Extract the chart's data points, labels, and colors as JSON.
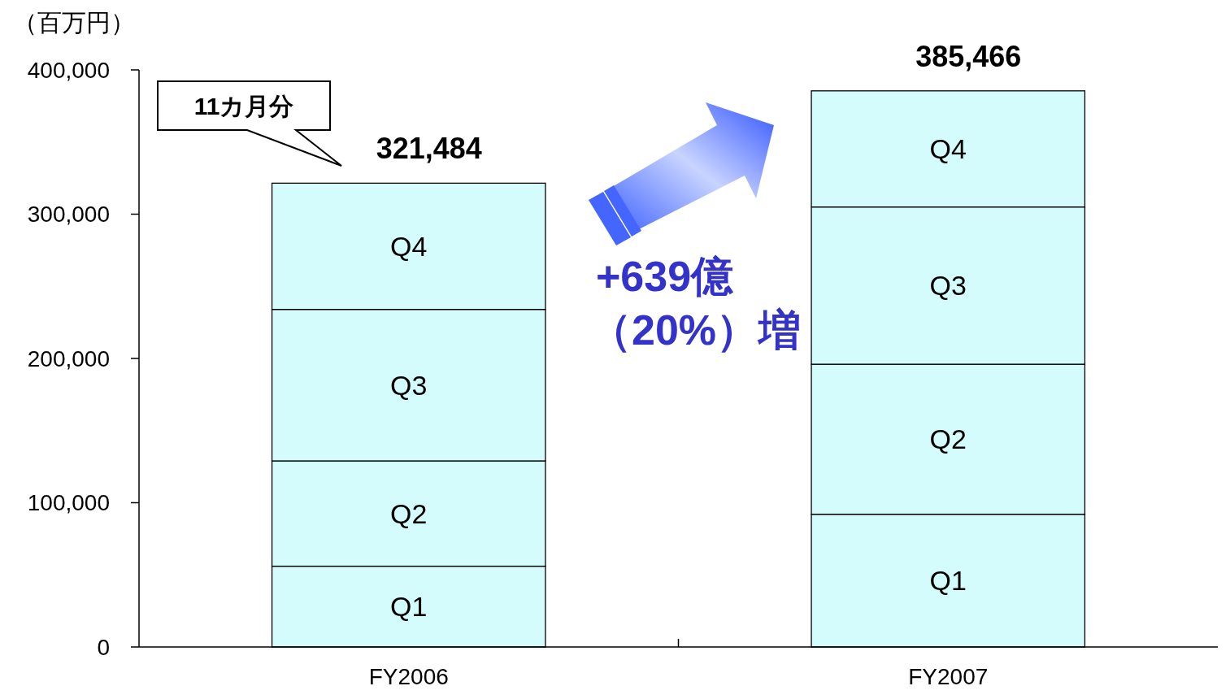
{
  "chart_data": {
    "type": "bar",
    "stacked": true,
    "ylabel": "（百万円）",
    "categories": [
      "FY2006",
      "FY2007"
    ],
    "series": [
      {
        "name": "Q1",
        "color": "#d4fcfc",
        "values": [
          56000,
          92000
        ]
      },
      {
        "name": "Q2",
        "color": "#d4fcfc",
        "values": [
          73000,
          104000
        ]
      },
      {
        "name": "Q3",
        "color": "#d4fcfc",
        "values": [
          105000,
          109000
        ]
      },
      {
        "name": "Q4",
        "color": "#d4fcfc",
        "values": [
          87484,
          80466
        ]
      }
    ],
    "totals": [
      "321,484",
      "385,466"
    ],
    "ylim": [
      0,
      400000
    ],
    "yticks": [
      0,
      {
        "value": 100000,
        "label": "100,000"
      },
      {
        "value": 200000,
        "label": "200,000"
      },
      {
        "value": 300000,
        "label": "300,000"
      },
      {
        "value": 400000,
        "label": "400,000"
      }
    ],
    "grid": false,
    "annotations": [
      "11カ月分",
      "+639億",
      "（20%）増"
    ]
  }
}
